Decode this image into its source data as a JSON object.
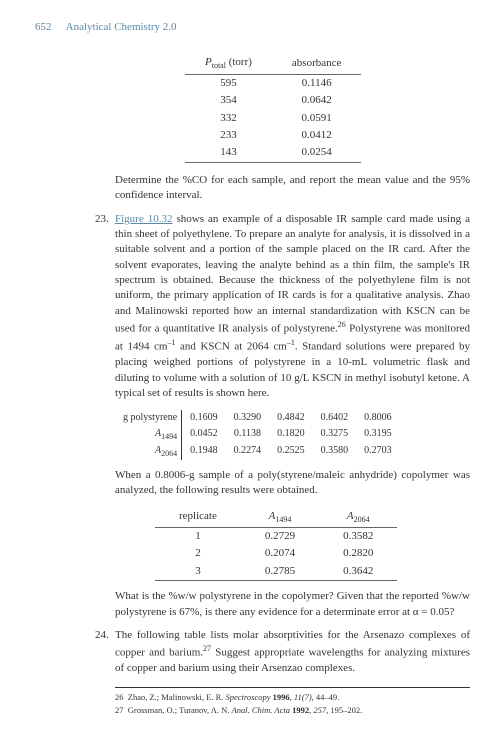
{
  "header": {
    "page_number": "652",
    "book_title": "Analytical Chemistry 2.0"
  },
  "table1": {
    "headers": [
      "P_total (torr)",
      "absorbance"
    ],
    "rows": [
      [
        "595",
        "0.1146"
      ],
      [
        "354",
        "0.0642"
      ],
      [
        "332",
        "0.0591"
      ],
      [
        "233",
        "0.0412"
      ],
      [
        "143",
        "0.0254"
      ]
    ]
  },
  "para_determine": "Determine the %CO for each sample, and report the mean value and the 95% confidence interval.",
  "q23": {
    "number": "23.",
    "figure_link": "Figure 10.32",
    "text_before": " shows an example of a disposable IR sample card made using a thin sheet of polyethylene. To prepare an analyte for analysis, it is dissolved in a suitable solvent and a portion of the sample placed on the IR card. After the solvent evaporates, leaving the analyte behind as a thin film, the sample's IR spectrum is obtained. Because the thickness of the polyethylene film is not uniform, the primary application of IR cards is for a qualitative analysis. Zhao and Malinowski reported how an internal standardization with KSCN can be used for a quantitative IR analysis of polystyrene.",
    "fn26": "26",
    "text_mid": " Polystyrene was monitored at 1494 cm",
    "exp1": "–1",
    "text_mid2": " and KSCN at 2064 cm",
    "exp2": "–1",
    "text_after": ". Standard solutions were prepared by placing weighed portions of polystyrene in a 10-mL volumetric flask and diluting to volume with a solution of 10 g/L KSCN in methyl isobutyl ketone. A typical set of results is shown here."
  },
  "table2": {
    "row_labels": [
      "g polystyrene",
      "A_1494",
      "A_2064"
    ],
    "rows": [
      [
        "0.1609",
        "0.3290",
        "0.4842",
        "0.6402",
        "0.8006"
      ],
      [
        "0.0452",
        "0.1138",
        "0.1820",
        "0.3275",
        "0.3195"
      ],
      [
        "0.1948",
        "0.2274",
        "0.2525",
        "0.3580",
        "0.2703"
      ]
    ]
  },
  "para_when": "When a 0.8006-g sample of a poly(styrene/maleic anhydride) copolymer was analyzed, the following results were obtained.",
  "table3": {
    "headers": [
      "replicate",
      "A_1494",
      "A_2064"
    ],
    "rows": [
      [
        "1",
        "0.2729",
        "0.3582"
      ],
      [
        "2",
        "0.2074",
        "0.2820"
      ],
      [
        "3",
        "0.2785",
        "0.3642"
      ]
    ]
  },
  "para_what": "What is the %w/w polystyrene in the copolymer?  Given that the reported %w/w polystyrene is 67%, is there any evidence for a determinate error at α = 0.05?",
  "q24": {
    "number": "24.",
    "text": "The following table lists molar absorptivities for the Arsenazo complexes of copper and barium.",
    "fn27": "27",
    "text_after": " Suggest appropriate wavelengths for analyzing mixtures of copper and barium using their Arsenzao complexes."
  },
  "footnotes": {
    "fn26": "26  Zhao, Z.; Malinowski, E. R. Spectroscopy 1996, 11(7), 44–49.",
    "fn27": "27  Grossman, O.; Turanov, A. N. Anal. Chim. Acta 1992, 257, 195–202."
  }
}
